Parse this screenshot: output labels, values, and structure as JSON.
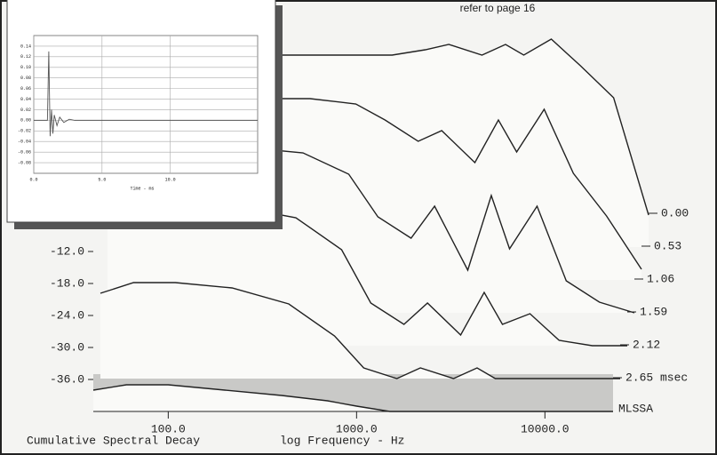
{
  "chart_data": [
    {
      "type": "waterfall",
      "title": "Cumulative Spectral Decay",
      "x_label": "log Frequency - Hz",
      "annotation": "MLSSA",
      "note": "refer to page 16",
      "x_scale": "log",
      "color": "#222222",
      "x": [
        40,
        60,
        100,
        200,
        400,
        700,
        1000,
        1500,
        2000,
        3000,
        4000,
        5000,
        7000,
        10000,
        15000,
        23000
      ],
      "xlim": [
        40,
        23000
      ],
      "xticks": [
        {
          "value": 100,
          "label": "100.0"
        },
        {
          "value": 1000,
          "label": "1000.0"
        },
        {
          "value": 10000,
          "label": "10000.0"
        }
      ],
      "ylim": [
        -42,
        0
      ],
      "yticks": [
        {
          "value": -12,
          "label": "-12.0"
        },
        {
          "value": -18,
          "label": "-18.0"
        },
        {
          "value": -24,
          "label": "-24.0"
        },
        {
          "value": -30,
          "label": "-30.0"
        },
        {
          "value": -36,
          "label": "-36.0"
        }
      ],
      "zlim": [
        0,
        2.65
      ],
      "zticks": [
        {
          "value": 0,
          "label": "0.00"
        },
        {
          "value": 0.53,
          "label": "0.53"
        },
        {
          "value": 1.06,
          "label": "1.06"
        },
        {
          "value": 1.59,
          "label": "1.59"
        },
        {
          "value": 2.12,
          "label": "2.12"
        },
        {
          "value": 2.65,
          "label": "2.65 msec"
        }
      ],
      "series": [
        {
          "z": 0,
          "values": [
            -7,
            -6,
            -6,
            -6,
            -6,
            -6,
            -6,
            -5,
            -4,
            -6,
            -4,
            -6,
            -3,
            -8,
            -14,
            -36
          ]
        },
        {
          "z": 0.53,
          "values": [
            -9,
            -8,
            -8,
            -8,
            -8,
            -9,
            -12,
            -16,
            -14,
            -20,
            -12,
            -18,
            -10,
            -22,
            -30,
            -40
          ]
        },
        {
          "z": 1.06,
          "values": [
            -13,
            -11,
            -11,
            -11,
            -12,
            -16,
            -24,
            -28,
            -22,
            -34,
            -20,
            -30,
            -22,
            -36,
            -40,
            -42
          ]
        },
        {
          "z": 1.59,
          "values": [
            -18,
            -16,
            -16,
            -16,
            -18,
            -24,
            -34,
            -38,
            -34,
            -40,
            -32,
            -38,
            -36,
            -41,
            -42,
            -42
          ]
        },
        {
          "z": 2.12,
          "values": [
            -26,
            -24,
            -24,
            -25,
            -28,
            -34,
            -40,
            -42,
            -40,
            -42,
            -40,
            -42,
            -42,
            -42,
            -42,
            -42
          ]
        },
        {
          "z": 2.65,
          "values": [
            -38,
            -37,
            -37,
            -38,
            -39,
            -40,
            -41,
            -42,
            -42,
            -42,
            -42,
            -42,
            -42,
            -42,
            -42,
            -42
          ]
        }
      ]
    },
    {
      "type": "line",
      "x_label": "Time - ms",
      "color": "#555555",
      "grid": true,
      "x": [
        0,
        1.0,
        1.1,
        1.2,
        1.3,
        1.4,
        1.5,
        1.7,
        1.9,
        2.2,
        2.6,
        3,
        5,
        16.4
      ],
      "values": [
        0,
        0,
        0.13,
        -0.03,
        0.02,
        -0.025,
        0.01,
        -0.01,
        0.006,
        -0.004,
        0.002,
        0,
        0,
        0
      ],
      "xlim": [
        0,
        16.4
      ],
      "ylim": [
        -0.1,
        0.16
      ],
      "xticks": [
        {
          "value": 0,
          "label": "0.0"
        },
        {
          "value": 5,
          "label": "5.0"
        },
        {
          "value": 10,
          "label": "10.0"
        }
      ],
      "yticks": [
        0.14,
        0.12,
        {
          "value": 0.1,
          "label": "0.10"
        },
        0.08,
        0.06,
        0.04,
        0.02,
        {
          "value": 0,
          "label": "0.00"
        },
        -0.02,
        -0.04,
        -0.06,
        -0.08
      ]
    }
  ]
}
